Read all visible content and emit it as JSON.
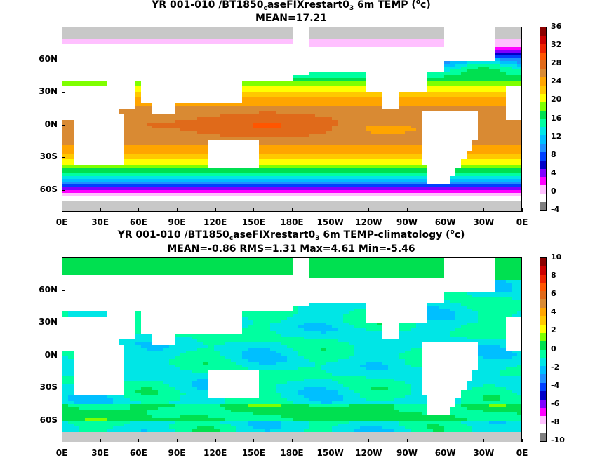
{
  "panels": [
    {
      "title_main": "YR 001-010 /BT1850",
      "title_sub": "c",
      "title_mid": "aseFIXrestart0",
      "title_sub2": "3",
      "title_end": " 6m TEMP (",
      "title_sup": "o",
      "title_unit": "c)",
      "stats": "MEAN=17.21",
      "colorbar_labels": [
        "36",
        "32",
        "28",
        "24",
        "20",
        "16",
        "12",
        "8",
        "4",
        "0",
        "-4"
      ],
      "colorbar_colors": [
        "#8b0000",
        "#cc0000",
        "#ee2200",
        "#ff5500",
        "#e06a1a",
        "#d98a33",
        "#ffa500",
        "#ffc800",
        "#ffff00",
        "#7fff00",
        "#00e050",
        "#00ffa0",
        "#00e6e6",
        "#00bfff",
        "#1e90ff",
        "#0040ff",
        "#0000c8",
        "#8000ff",
        "#ff00ff",
        "#ffc0ff",
        "#ffffff",
        "#808080"
      ],
      "levels": {
        "equator": 28,
        "pole": -2,
        "warm_pool": 30
      }
    },
    {
      "title_main": "YR 001-010 /BT1850",
      "title_sub": "c",
      "title_mid": "aseFIXrestart0",
      "title_sub2": "3",
      "title_end": " 6m TEMP-climatology (",
      "title_sup": "o",
      "title_unit": "c)",
      "stats": "MEAN=-0.86   RMS=1.31   Max=4.61   Min=-5.46",
      "colorbar_labels": [
        "10",
        "8",
        "6",
        "4",
        "2",
        "0",
        "-2",
        "-4",
        "-6",
        "-8",
        "-10"
      ],
      "colorbar_colors": [
        "#8b0000",
        "#cc0000",
        "#ee2200",
        "#ff5500",
        "#e06a1a",
        "#d98a33",
        "#ffa500",
        "#ffc800",
        "#ffff00",
        "#7fff00",
        "#00e050",
        "#00ffa0",
        "#00e6e6",
        "#00bfff",
        "#1e90ff",
        "#0040ff",
        "#0000c8",
        "#8000ff",
        "#ff00ff",
        "#ffc0ff",
        "#ffffff",
        "#808080"
      ]
    }
  ],
  "lat_labels": [
    "60N",
    "30N",
    "0N",
    "30S",
    "60S"
  ],
  "lon_labels": [
    "0E",
    "30E",
    "60E",
    "90E",
    "120E",
    "150E",
    "180E",
    "150W",
    "120W",
    "90W",
    "60W",
    "30W",
    "0E"
  ],
  "colors": {
    "land": "#ffffff",
    "ice_gray": "#c8c8c8",
    "coast": "#000000"
  }
}
